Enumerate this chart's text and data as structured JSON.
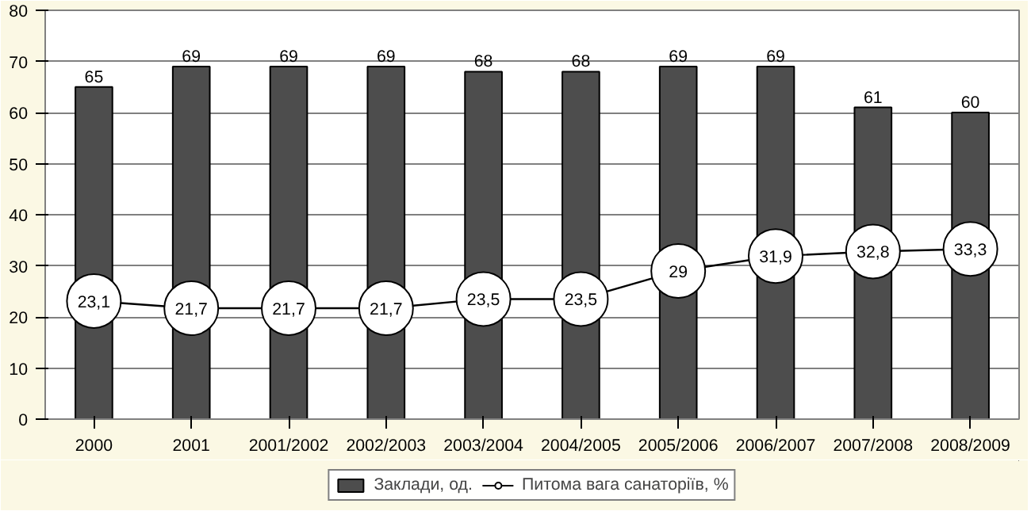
{
  "chart_data": {
    "type": "bar",
    "categories": [
      "2000",
      "2001",
      "2001/2002",
      "2002/2003",
      "2003/2004",
      "2004/2005",
      "2005/2006",
      "2006/2007",
      "2007/2008",
      "2008/2009"
    ],
    "series": [
      {
        "name": "Заклади, од.",
        "color": "#4d4d4d",
        "values": [
          65,
          69,
          69,
          69,
          68,
          68,
          69,
          69,
          61,
          60
        ],
        "value_labels": [
          "65",
          "69",
          "69",
          "69",
          "68",
          "68",
          "69",
          "69",
          "61",
          "60"
        ]
      },
      {
        "name": "Питома вага санаторіїв, %",
        "type": "line",
        "color": "#000000",
        "marker": "circle",
        "values": [
          23.1,
          21.7,
          21.7,
          21.7,
          23.5,
          23.5,
          29,
          31.9,
          32.8,
          33.3
        ],
        "value_labels": [
          "23,1",
          "21,7",
          "21,7",
          "21,7",
          "23,5",
          "23,5",
          "29",
          "31,9",
          "32,8",
          "33,3"
        ]
      }
    ],
    "ylim": [
      0,
      80
    ],
    "yticks": [
      0,
      10,
      20,
      30,
      40,
      50,
      60,
      70,
      80
    ],
    "grid": "y",
    "legend": "bottom"
  }
}
